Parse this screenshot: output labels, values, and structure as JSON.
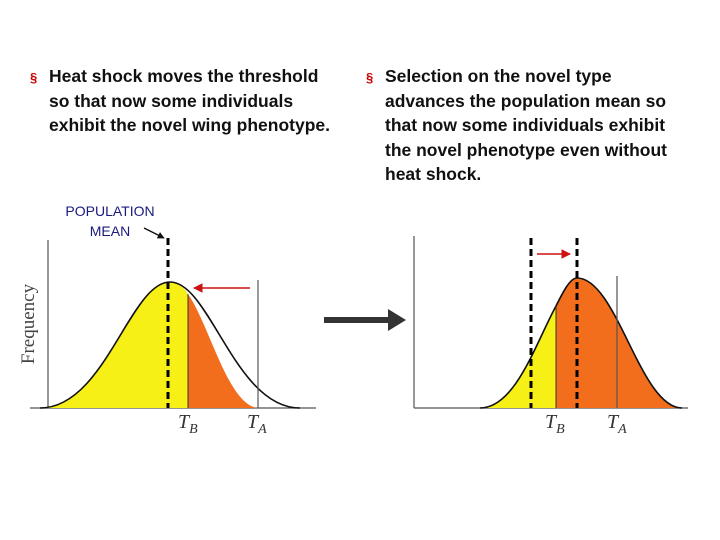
{
  "left_panel": {
    "bullet_marker": "§",
    "bullet_text": "Heat shock moves the threshold so that now some individuals exhibit the novel wing phenotype.",
    "population_label_line1": "POPULATION",
    "population_label_line2": "MEAN",
    "y_axis_label": "Frequency",
    "threshold_b": "T",
    "threshold_b_sub": "B",
    "threshold_a": "T",
    "threshold_a_sub": "A"
  },
  "right_panel": {
    "bullet_marker": "§",
    "bullet_text": "Selection on the novel type advances the population mean so that now some individuals exhibit the novel phenotype even without heat shock.",
    "threshold_b": "T",
    "threshold_b_sub": "B",
    "threshold_a": "T",
    "threshold_a_sub": "A"
  },
  "colors": {
    "normal_fill": "#f7f016",
    "novel_fill": "#f26e1c",
    "arrow_red": "#cc1111",
    "bullet_marker": "#cc0000",
    "label_blue": "#1a1a80"
  },
  "icons": [
    "transition-arrow-icon",
    "shift-arrow-icon"
  ]
}
